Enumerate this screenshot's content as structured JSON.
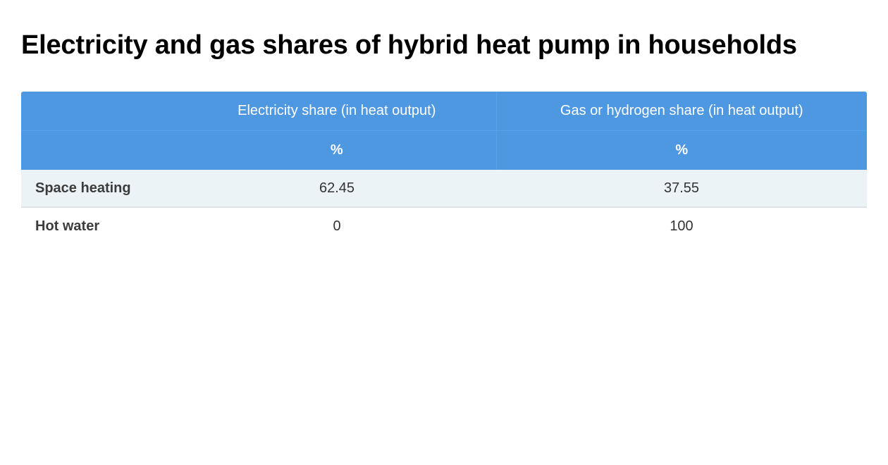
{
  "page": {
    "title": "Electricity and gas shares of hybrid heat pump in households"
  },
  "table": {
    "header_row_1": [
      "",
      "Electricity share (in heat output)",
      "Gas or hydrogen share (in heat output)"
    ],
    "header_row_2": [
      "",
      "%",
      "%"
    ],
    "rows": [
      {
        "label": "Space heating",
        "electricity": "62.45",
        "gas": "37.55"
      },
      {
        "label": "Hot water",
        "electricity": "0",
        "gas": "100"
      }
    ]
  },
  "colors": {
    "header_background": "#4e98e2",
    "header_text": "#ffffff",
    "striped_row_background": "#ebf3f7"
  }
}
